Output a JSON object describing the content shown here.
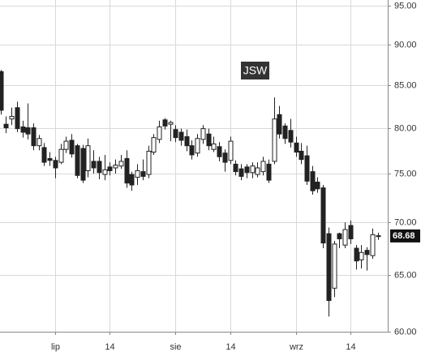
{
  "chart_data": {
    "type": "candlestick",
    "title": "JSW",
    "categories": [
      null,
      null,
      null,
      null,
      null,
      null,
      null,
      null,
      null,
      null,
      "lip",
      null,
      null,
      null,
      null,
      null,
      null,
      null,
      null,
      null,
      "14",
      null,
      null,
      null,
      null,
      null,
      null,
      null,
      null,
      null,
      null,
      null,
      "sie",
      null,
      null,
      null,
      null,
      null,
      null,
      null,
      null,
      null,
      "14",
      null,
      null,
      null,
      null,
      null,
      null,
      null,
      null,
      null,
      null,
      null,
      "wrz",
      null,
      null,
      null,
      null,
      null,
      null,
      null,
      null,
      null,
      "14",
      null,
      null,
      null,
      null,
      null
    ],
    "open": [
      86.6,
      80.4,
      81.0,
      82.3,
      80.1,
      80.0,
      80.0,
      78.0,
      77.8,
      76.6,
      76.4,
      76.2,
      77.6,
      78.6,
      78.0,
      77.7,
      75.3,
      76.3,
      76.3,
      74.9,
      75.7,
      75.6,
      75.8,
      76.6,
      74.9,
      74.6,
      75.2,
      74.9,
      77.3,
      78.7,
      80.9,
      80.4,
      79.8,
      79.5,
      79.0,
      78.0,
      77.2,
      78.7,
      79.3,
      77.6,
      77.9,
      77.2,
      76.4,
      76.0,
      75.5,
      75.7,
      75.1,
      74.9,
      75.2,
      76.0,
      76.3,
      81.5,
      80.2,
      79.7,
      78.3,
      77.4,
      76.9,
      75.2,
      74.1,
      73.5,
      68.9,
      63.8,
      68.9,
      67.8,
      69.7,
      67.5,
      66.4,
      67.3,
      66.8,
      68.7
    ],
    "high": [
      86.8,
      81.3,
      82.3,
      83.0,
      80.8,
      82.8,
      80.5,
      79.2,
      78.3,
      77.3,
      76.8,
      78.2,
      79.0,
      79.3,
      78.2,
      78.1,
      78.8,
      77.5,
      76.8,
      77.0,
      76.2,
      76.5,
      77.0,
      77.5,
      75.2,
      76.0,
      76.5,
      78.0,
      79.3,
      80.8,
      81.1,
      80.8,
      80.3,
      79.9,
      79.8,
      78.6,
      79.3,
      80.3,
      79.9,
      79.0,
      78.4,
      77.6,
      79.0,
      76.4,
      76.0,
      76.0,
      76.2,
      76.2,
      76.8,
      76.5,
      83.5,
      82.5,
      80.5,
      81.0,
      79.0,
      78.3,
      78.0,
      75.8,
      74.6,
      73.8,
      69.5,
      68.2,
      69.0,
      70.0,
      70.2,
      67.8,
      67.8,
      67.6,
      69.4,
      69.0
    ],
    "low": [
      81.5,
      79.4,
      80.3,
      79.5,
      78.9,
      78.7,
      77.5,
      77.5,
      75.8,
      75.8,
      74.5,
      76.0,
      77.2,
      76.7,
      74.5,
      74.0,
      74.6,
      75.0,
      74.4,
      74.3,
      74.8,
      75.0,
      75.5,
      73.5,
      73.2,
      73.8,
      74.3,
      74.5,
      77.0,
      78.3,
      79.8,
      78.5,
      78.4,
      78.0,
      77.4,
      76.5,
      76.8,
      78.2,
      77.5,
      77.3,
      76.3,
      75.2,
      76.0,
      74.8,
      74.3,
      74.5,
      74.5,
      74.6,
      74.8,
      74.0,
      76.0,
      78.8,
      78.2,
      77.8,
      76.8,
      76.0,
      73.8,
      72.8,
      73.0,
      67.5,
      61.3,
      63.0,
      67.5,
      67.5,
      67.9,
      65.5,
      65.6,
      65.4,
      66.5,
      68.3
    ],
    "close": [
      82.0,
      80.0,
      81.3,
      79.9,
      79.5,
      79.3,
      78.0,
      78.8,
      76.2,
      76.4,
      75.6,
      77.6,
      78.5,
      77.1,
      74.8,
      74.3,
      78.0,
      75.6,
      75.1,
      75.4,
      75.3,
      75.9,
      76.3,
      74.0,
      73.8,
      75.3,
      74.7,
      77.4,
      78.9,
      80.1,
      80.2,
      80.6,
      78.9,
      78.6,
      78.0,
      77.0,
      78.8,
      79.9,
      78.0,
      78.2,
      76.8,
      76.2,
      78.5,
      75.2,
      74.7,
      75.1,
      75.8,
      75.6,
      76.3,
      74.3,
      81.0,
      79.3,
      78.8,
      78.4,
      77.3,
      76.5,
      74.2,
      73.2,
      73.4,
      68.0,
      62.7,
      67.9,
      68.4,
      69.3,
      68.4,
      66.3,
      67.1,
      66.9,
      68.8,
      68.68
    ],
    "up_color": "#ffffff",
    "down_color": "#222222",
    "last_price": 68.68,
    "ylim": [
      60,
      95.8
    ],
    "ylog": true,
    "yticks": [
      {
        "value": 60,
        "label": "60.00"
      },
      {
        "value": 65,
        "label": "65.00"
      },
      {
        "value": 70,
        "label": "70.00"
      },
      {
        "value": 75,
        "label": "75.00"
      },
      {
        "value": 80,
        "label": "80.00"
      },
      {
        "value": 85,
        "label": "85.00"
      },
      {
        "value": 90,
        "label": "90.00"
      },
      {
        "value": 95,
        "label": "95.00"
      }
    ],
    "grid": true
  }
}
